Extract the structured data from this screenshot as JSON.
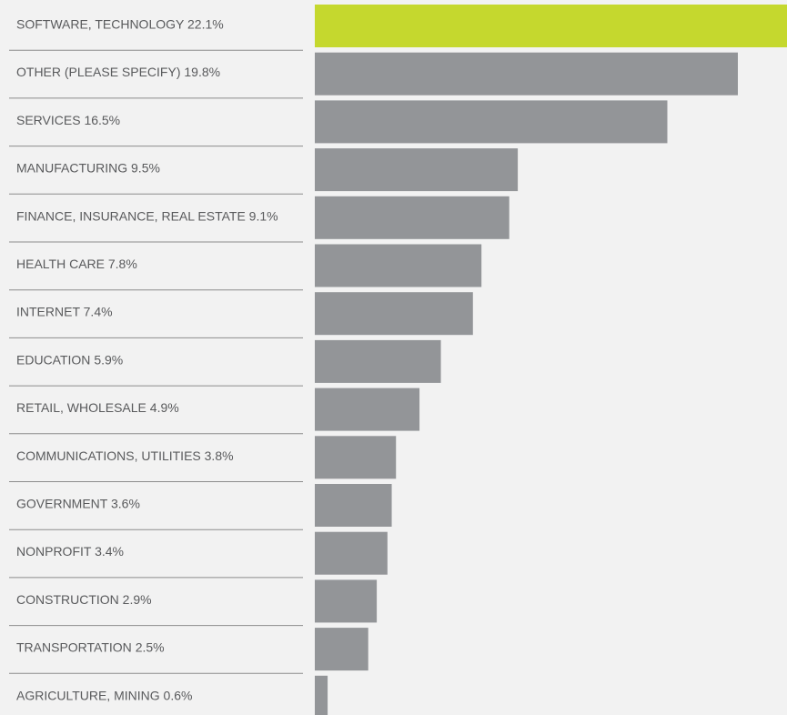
{
  "chart_data": {
    "type": "bar",
    "orientation": "horizontal",
    "categories": [
      "SOFTWARE, TECHNOLOGY",
      "OTHER (PLEASE SPECIFY)",
      "SERVICES",
      "MANUFACTURING",
      "FINANCE, INSURANCE, REAL ESTATE",
      "HEALTH CARE",
      "INTERNET",
      "EDUCATION",
      "RETAIL, WHOLESALE",
      "COMMUNICATIONS, UTILITIES",
      "GOVERNMENT",
      "NONPROFIT",
      "CONSTRUCTION",
      "TRANSPORTATION",
      "AGRICULTURE, MINING"
    ],
    "values": [
      22.1,
      19.8,
      16.5,
      9.5,
      9.1,
      7.8,
      7.4,
      5.9,
      4.9,
      3.8,
      3.6,
      3.4,
      2.9,
      2.5,
      0.6
    ],
    "value_labels": [
      "22.1%",
      "19.8%",
      "16.5%",
      "9.5%",
      "9.1%",
      "7.8%",
      "7.4%",
      "5.9%",
      "4.9%",
      "3.8%",
      "3.6%",
      "3.4%",
      "2.9%",
      "2.5%",
      "0.6%"
    ],
    "colors": [
      "#c5d82e",
      "#939598",
      "#939598",
      "#939598",
      "#939598",
      "#939598",
      "#939598",
      "#939598",
      "#939598",
      "#939598",
      "#939598",
      "#939598",
      "#939598",
      "#939598",
      "#939598"
    ]
  }
}
